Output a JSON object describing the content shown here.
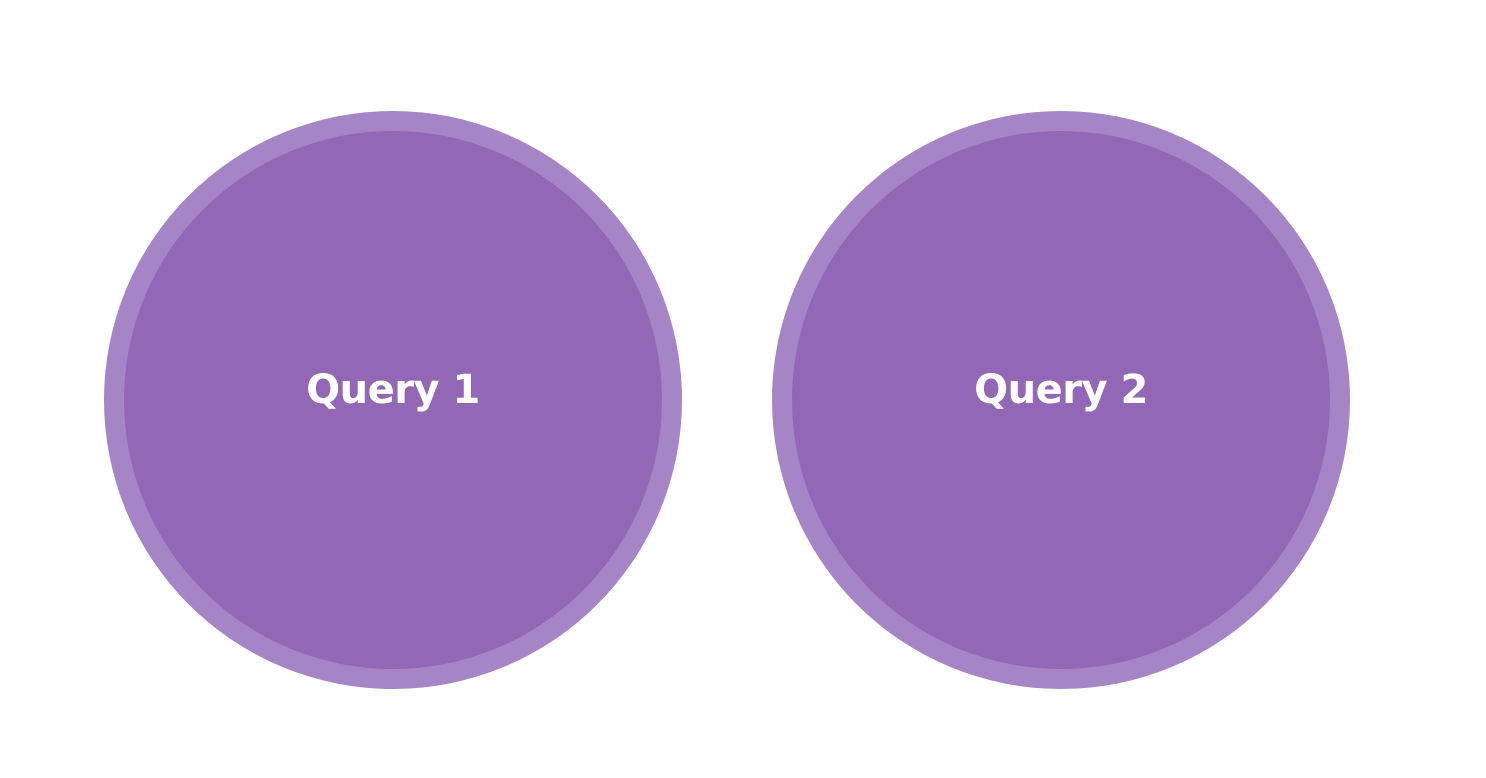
{
  "diagram": {
    "nodes": [
      {
        "label": "Query 1"
      },
      {
        "label": "Query 2"
      }
    ]
  },
  "colors": {
    "background": "#ffffff",
    "node_ring": "#a585c5",
    "node_fill": "#9268b6",
    "label_text": "#ffffff"
  }
}
